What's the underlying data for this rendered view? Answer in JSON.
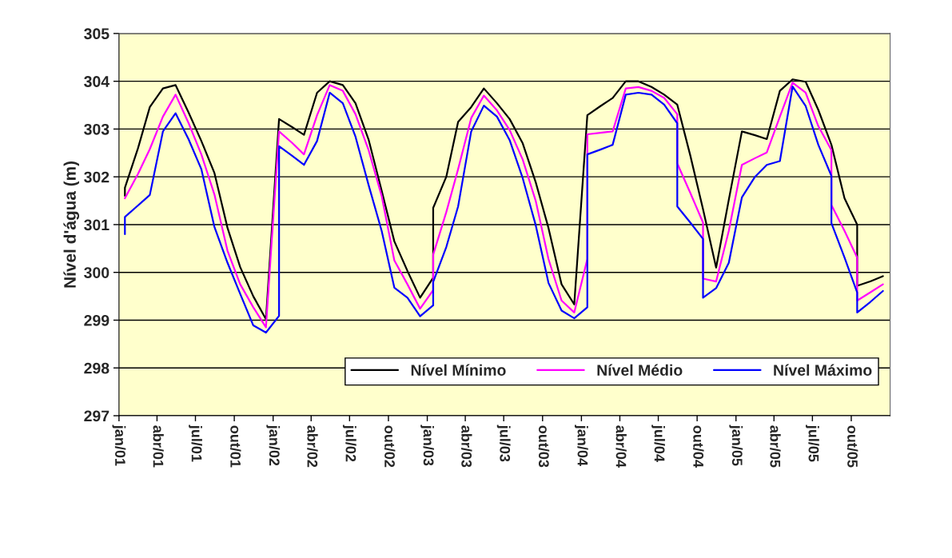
{
  "chart_data": {
    "type": "line",
    "ylabel": "Nível d'água (m)",
    "xlim": [
      "2001-01-01",
      "2006-01-01"
    ],
    "xticks": [
      {
        "value": "2001-01-01",
        "label": "jan/01"
      },
      {
        "value": "2001-04-01",
        "label": "abr/01"
      },
      {
        "value": "2001-07-01",
        "label": "jul/01"
      },
      {
        "value": "2001-10-01",
        "label": "out/01"
      },
      {
        "value": "2002-01-01",
        "label": "jan/02"
      },
      {
        "value": "2002-04-01",
        "label": "abr/02"
      },
      {
        "value": "2002-07-01",
        "label": "jul/02"
      },
      {
        "value": "2002-10-01",
        "label": "out/02"
      },
      {
        "value": "2003-01-01",
        "label": "jan/03"
      },
      {
        "value": "2003-04-01",
        "label": "abr/03"
      },
      {
        "value": "2003-07-01",
        "label": "jul/03"
      },
      {
        "value": "2003-10-01",
        "label": "out/03"
      },
      {
        "value": "2004-01-01",
        "label": "jan/04"
      },
      {
        "value": "2004-04-01",
        "label": "abr/04"
      },
      {
        "value": "2004-07-01",
        "label": "jul/04"
      },
      {
        "value": "2004-10-01",
        "label": "out/04"
      },
      {
        "value": "2005-01-01",
        "label": "jan/05"
      },
      {
        "value": "2005-04-01",
        "label": "abr/05"
      },
      {
        "value": "2005-07-01",
        "label": "jul/05"
      },
      {
        "value": "2005-10-01",
        "label": "out/05"
      }
    ],
    "ylim": [
      297,
      305
    ],
    "yticks": [
      297,
      298,
      299,
      300,
      301,
      302,
      303,
      304,
      305
    ],
    "grid": "y",
    "legend": "bottom right",
    "marker": "none",
    "line_style": "solid",
    "series": [
      {
        "name": "Nível Mínimo",
        "color": "#000000",
        "x": [
          "2001-01-15",
          "2001-01-15",
          "2001-02-15",
          "2001-03-15",
          "2001-04-15",
          "2001-05-15",
          "2001-06-15",
          "2001-07-15",
          "2001-08-15",
          "2001-09-15",
          "2001-10-15",
          "2001-11-15",
          "2001-12-15",
          "2002-01-15",
          "2002-02-15",
          "2002-03-15",
          "2002-04-15",
          "2002-05-15",
          "2002-06-15",
          "2002-07-15",
          "2002-08-15",
          "2002-09-15",
          "2002-10-15",
          "2002-11-15",
          "2002-12-15",
          "2003-01-15",
          "2003-01-15",
          "2003-02-15",
          "2003-03-15",
          "2003-04-15",
          "2003-05-15",
          "2003-06-15",
          "2003-07-15",
          "2003-08-15",
          "2003-09-15",
          "2003-10-15",
          "2003-11-15",
          "2003-12-15",
          "2004-01-15",
          "2004-02-15",
          "2004-03-15",
          "2004-04-15",
          "2004-05-15",
          "2004-06-15",
          "2004-07-15",
          "2004-08-15",
          "2004-09-15",
          "2004-10-15",
          "2004-11-15",
          "2004-12-15",
          "2005-01-15",
          "2005-02-15",
          "2005-03-15",
          "2005-04-15",
          "2005-05-15",
          "2005-06-15",
          "2005-07-15",
          "2005-08-15",
          "2005-09-15",
          "2005-10-15",
          "2005-10-15",
          "2005-11-15",
          "2005-12-15"
        ],
        "values": [
          301.6,
          301.77,
          302.6,
          303.46,
          303.85,
          303.92,
          303.34,
          302.75,
          302.08,
          300.93,
          300.11,
          299.5,
          299.02,
          303.21,
          303.04,
          302.88,
          303.76,
          304.0,
          303.92,
          303.54,
          302.78,
          301.71,
          300.65,
          300.03,
          299.47,
          299.89,
          301.35,
          302.0,
          303.15,
          303.46,
          303.85,
          303.54,
          303.21,
          302.7,
          301.88,
          300.93,
          299.75,
          299.33,
          303.29,
          303.48,
          303.65,
          304.0,
          304.0,
          303.88,
          303.72,
          303.51,
          302.44,
          301.32,
          300.1,
          301.52,
          302.95,
          302.87,
          302.79,
          303.8,
          304.04,
          303.99,
          303.4,
          302.67,
          301.55,
          301.0,
          299.72,
          299.81,
          299.92
        ]
      },
      {
        "name": "Nível Médio",
        "color": "#ff00ff",
        "x": [
          "2001-01-15",
          "2001-02-15",
          "2001-03-15",
          "2001-04-15",
          "2001-05-15",
          "2001-06-15",
          "2001-07-15",
          "2001-08-15",
          "2001-09-15",
          "2001-10-15",
          "2001-11-15",
          "2001-12-15",
          "2002-01-15",
          "2002-02-15",
          "2002-03-15",
          "2002-04-15",
          "2002-05-15",
          "2002-06-15",
          "2002-07-15",
          "2002-08-15",
          "2002-09-15",
          "2002-10-15",
          "2002-11-15",
          "2002-12-15",
          "2003-01-15",
          "2003-01-15",
          "2003-02-15",
          "2003-03-15",
          "2003-04-15",
          "2003-05-15",
          "2003-06-15",
          "2003-07-15",
          "2003-08-15",
          "2003-09-15",
          "2003-10-15",
          "2003-11-15",
          "2003-12-15",
          "2004-01-15",
          "2004-01-15",
          "2004-02-15",
          "2004-03-15",
          "2004-04-15",
          "2004-05-15",
          "2004-06-15",
          "2004-07-15",
          "2004-08-15",
          "2004-08-15",
          "2004-09-15",
          "2004-10-15",
          "2004-10-15",
          "2004-11-15",
          "2004-12-15",
          "2005-01-15",
          "2005-02-15",
          "2005-03-15",
          "2005-04-15",
          "2005-05-15",
          "2005-06-15",
          "2005-07-15",
          "2005-08-15",
          "2005-08-15",
          "2005-09-15",
          "2005-10-15",
          "2005-10-15",
          "2005-11-15",
          "2005-12-15"
        ],
        "values": [
          301.55,
          302.06,
          302.58,
          303.26,
          303.72,
          303.12,
          302.47,
          301.63,
          300.45,
          299.75,
          299.27,
          298.85,
          302.95,
          302.71,
          302.47,
          303.29,
          303.92,
          303.8,
          303.31,
          302.56,
          301.6,
          300.25,
          299.75,
          299.24,
          299.63,
          300.37,
          301.26,
          302.16,
          303.23,
          303.7,
          303.39,
          302.98,
          302.36,
          301.49,
          300.28,
          299.41,
          299.16,
          300.28,
          302.89,
          302.92,
          302.95,
          303.85,
          303.88,
          303.8,
          303.65,
          303.31,
          302.28,
          301.66,
          301.04,
          299.87,
          299.81,
          300.87,
          302.25,
          302.39,
          302.51,
          303.26,
          303.97,
          303.76,
          303.06,
          302.56,
          301.41,
          300.87,
          300.31,
          299.41,
          299.58,
          299.75
        ]
      },
      {
        "name": "Nível Máximo",
        "color": "#0000ff",
        "x": [
          "2001-01-15",
          "2001-01-15",
          "2001-02-15",
          "2001-03-15",
          "2001-04-15",
          "2001-05-15",
          "2001-06-15",
          "2001-07-15",
          "2001-08-15",
          "2001-09-15",
          "2001-10-15",
          "2001-11-15",
          "2001-12-15",
          "2002-01-15",
          "2002-01-15",
          "2002-02-15",
          "2002-03-15",
          "2002-04-15",
          "2002-05-15",
          "2002-06-15",
          "2002-07-15",
          "2002-08-15",
          "2002-09-15",
          "2002-10-15",
          "2002-11-15",
          "2002-12-15",
          "2003-01-15",
          "2003-01-15",
          "2003-02-15",
          "2003-03-15",
          "2003-04-15",
          "2003-05-15",
          "2003-06-15",
          "2003-07-15",
          "2003-08-15",
          "2003-09-15",
          "2003-10-15",
          "2003-11-15",
          "2003-12-15",
          "2004-01-15",
          "2004-01-15",
          "2004-02-15",
          "2004-03-15",
          "2004-04-15",
          "2004-05-15",
          "2004-06-15",
          "2004-07-15",
          "2004-08-15",
          "2004-08-15",
          "2004-09-15",
          "2004-10-15",
          "2004-10-15",
          "2004-11-15",
          "2004-12-15",
          "2005-01-15",
          "2005-02-15",
          "2005-03-15",
          "2005-04-15",
          "2005-05-15",
          "2005-06-15",
          "2005-07-15",
          "2005-08-15",
          "2005-08-15",
          "2005-09-15",
          "2005-10-15",
          "2005-10-15",
          "2005-11-15",
          "2005-12-15"
        ],
        "values": [
          300.8,
          301.16,
          301.4,
          301.62,
          302.95,
          303.33,
          302.78,
          302.16,
          300.95,
          300.2,
          299.55,
          298.89,
          298.74,
          299.09,
          302.64,
          302.44,
          302.25,
          302.75,
          303.76,
          303.54,
          302.84,
          301.83,
          300.87,
          299.68,
          299.47,
          299.08,
          299.31,
          299.8,
          300.53,
          301.38,
          302.95,
          303.49,
          303.26,
          302.77,
          301.97,
          300.98,
          299.78,
          299.2,
          299.04,
          299.27,
          302.47,
          302.57,
          302.67,
          303.72,
          303.76,
          303.72,
          303.51,
          303.12,
          301.38,
          301.04,
          300.7,
          299.47,
          299.67,
          300.2,
          301.57,
          302.0,
          302.25,
          302.33,
          303.89,
          303.48,
          302.67,
          302.02,
          301.03,
          300.31,
          299.58,
          299.16,
          299.38,
          299.61
        ]
      }
    ]
  }
}
